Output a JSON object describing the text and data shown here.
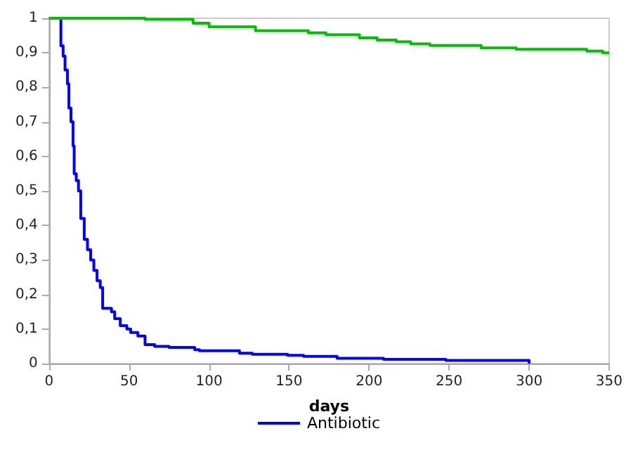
{
  "chart_data": {
    "type": "step",
    "xlabel": "days",
    "xlim": [
      0,
      350
    ],
    "xticks": [
      0,
      50,
      100,
      150,
      200,
      250,
      300,
      350
    ],
    "ylim": [
      0,
      1
    ],
    "yticks": [
      0,
      {
        "value": 0.1,
        "label": "0,1"
      },
      {
        "value": 0.2,
        "label": "0,2"
      },
      {
        "value": 0.3,
        "label": "0,3"
      },
      {
        "value": 0.4,
        "label": "0,4"
      },
      {
        "value": 0.5,
        "label": "0,5"
      },
      {
        "value": 0.6,
        "label": "0,6"
      },
      {
        "value": 0.7,
        "label": "0,7"
      },
      {
        "value": 0.8,
        "label": "0,8"
      },
      {
        "value": 0.9,
        "label": "0,9"
      },
      1
    ],
    "grid": false,
    "legend": "bottom",
    "marker": "none",
    "line_style": "solid",
    "series": [
      {
        "name": "Antibiotic",
        "color": "#0000ff",
        "x": [
          0,
          7.4,
          8.8,
          10,
          11.5,
          12.4,
          13.7,
          15,
          15.7,
          17,
          18.4,
          19.8,
          22,
          24,
          26,
          28,
          30,
          32,
          33.5,
          39,
          41,
          44.5,
          48.6,
          51,
          55.5,
          60,
          66,
          75,
          91,
          94,
          119,
          127,
          149,
          159,
          180,
          209,
          248,
          300
        ],
        "values": [
          1,
          0.92,
          0.89,
          0.85,
          0.81,
          0.74,
          0.7,
          0.63,
          0.55,
          0.53,
          0.5,
          0.42,
          0.36,
          0.33,
          0.3,
          0.27,
          0.24,
          0.22,
          0.16,
          0.15,
          0.13,
          0.11,
          0.1,
          0.09,
          0.08,
          0.055,
          0.05,
          0.047,
          0.04,
          0.037,
          0.03,
          0.027,
          0.024,
          0.021,
          0.015,
          0.012,
          0.009,
          0
        ]
      },
      {
        "color": "#00c000",
        "x": [
          0,
          60,
          90,
          100,
          129,
          162,
          173,
          194,
          205,
          217,
          226,
          238,
          270,
          292,
          336,
          346,
          350
        ],
        "values": [
          1,
          0.997,
          0.986,
          0.975,
          0.964,
          0.958,
          0.952,
          0.943,
          0.937,
          0.932,
          0.926,
          0.921,
          0.914,
          0.91,
          0.905,
          0.9,
          0.9
        ]
      }
    ]
  }
}
